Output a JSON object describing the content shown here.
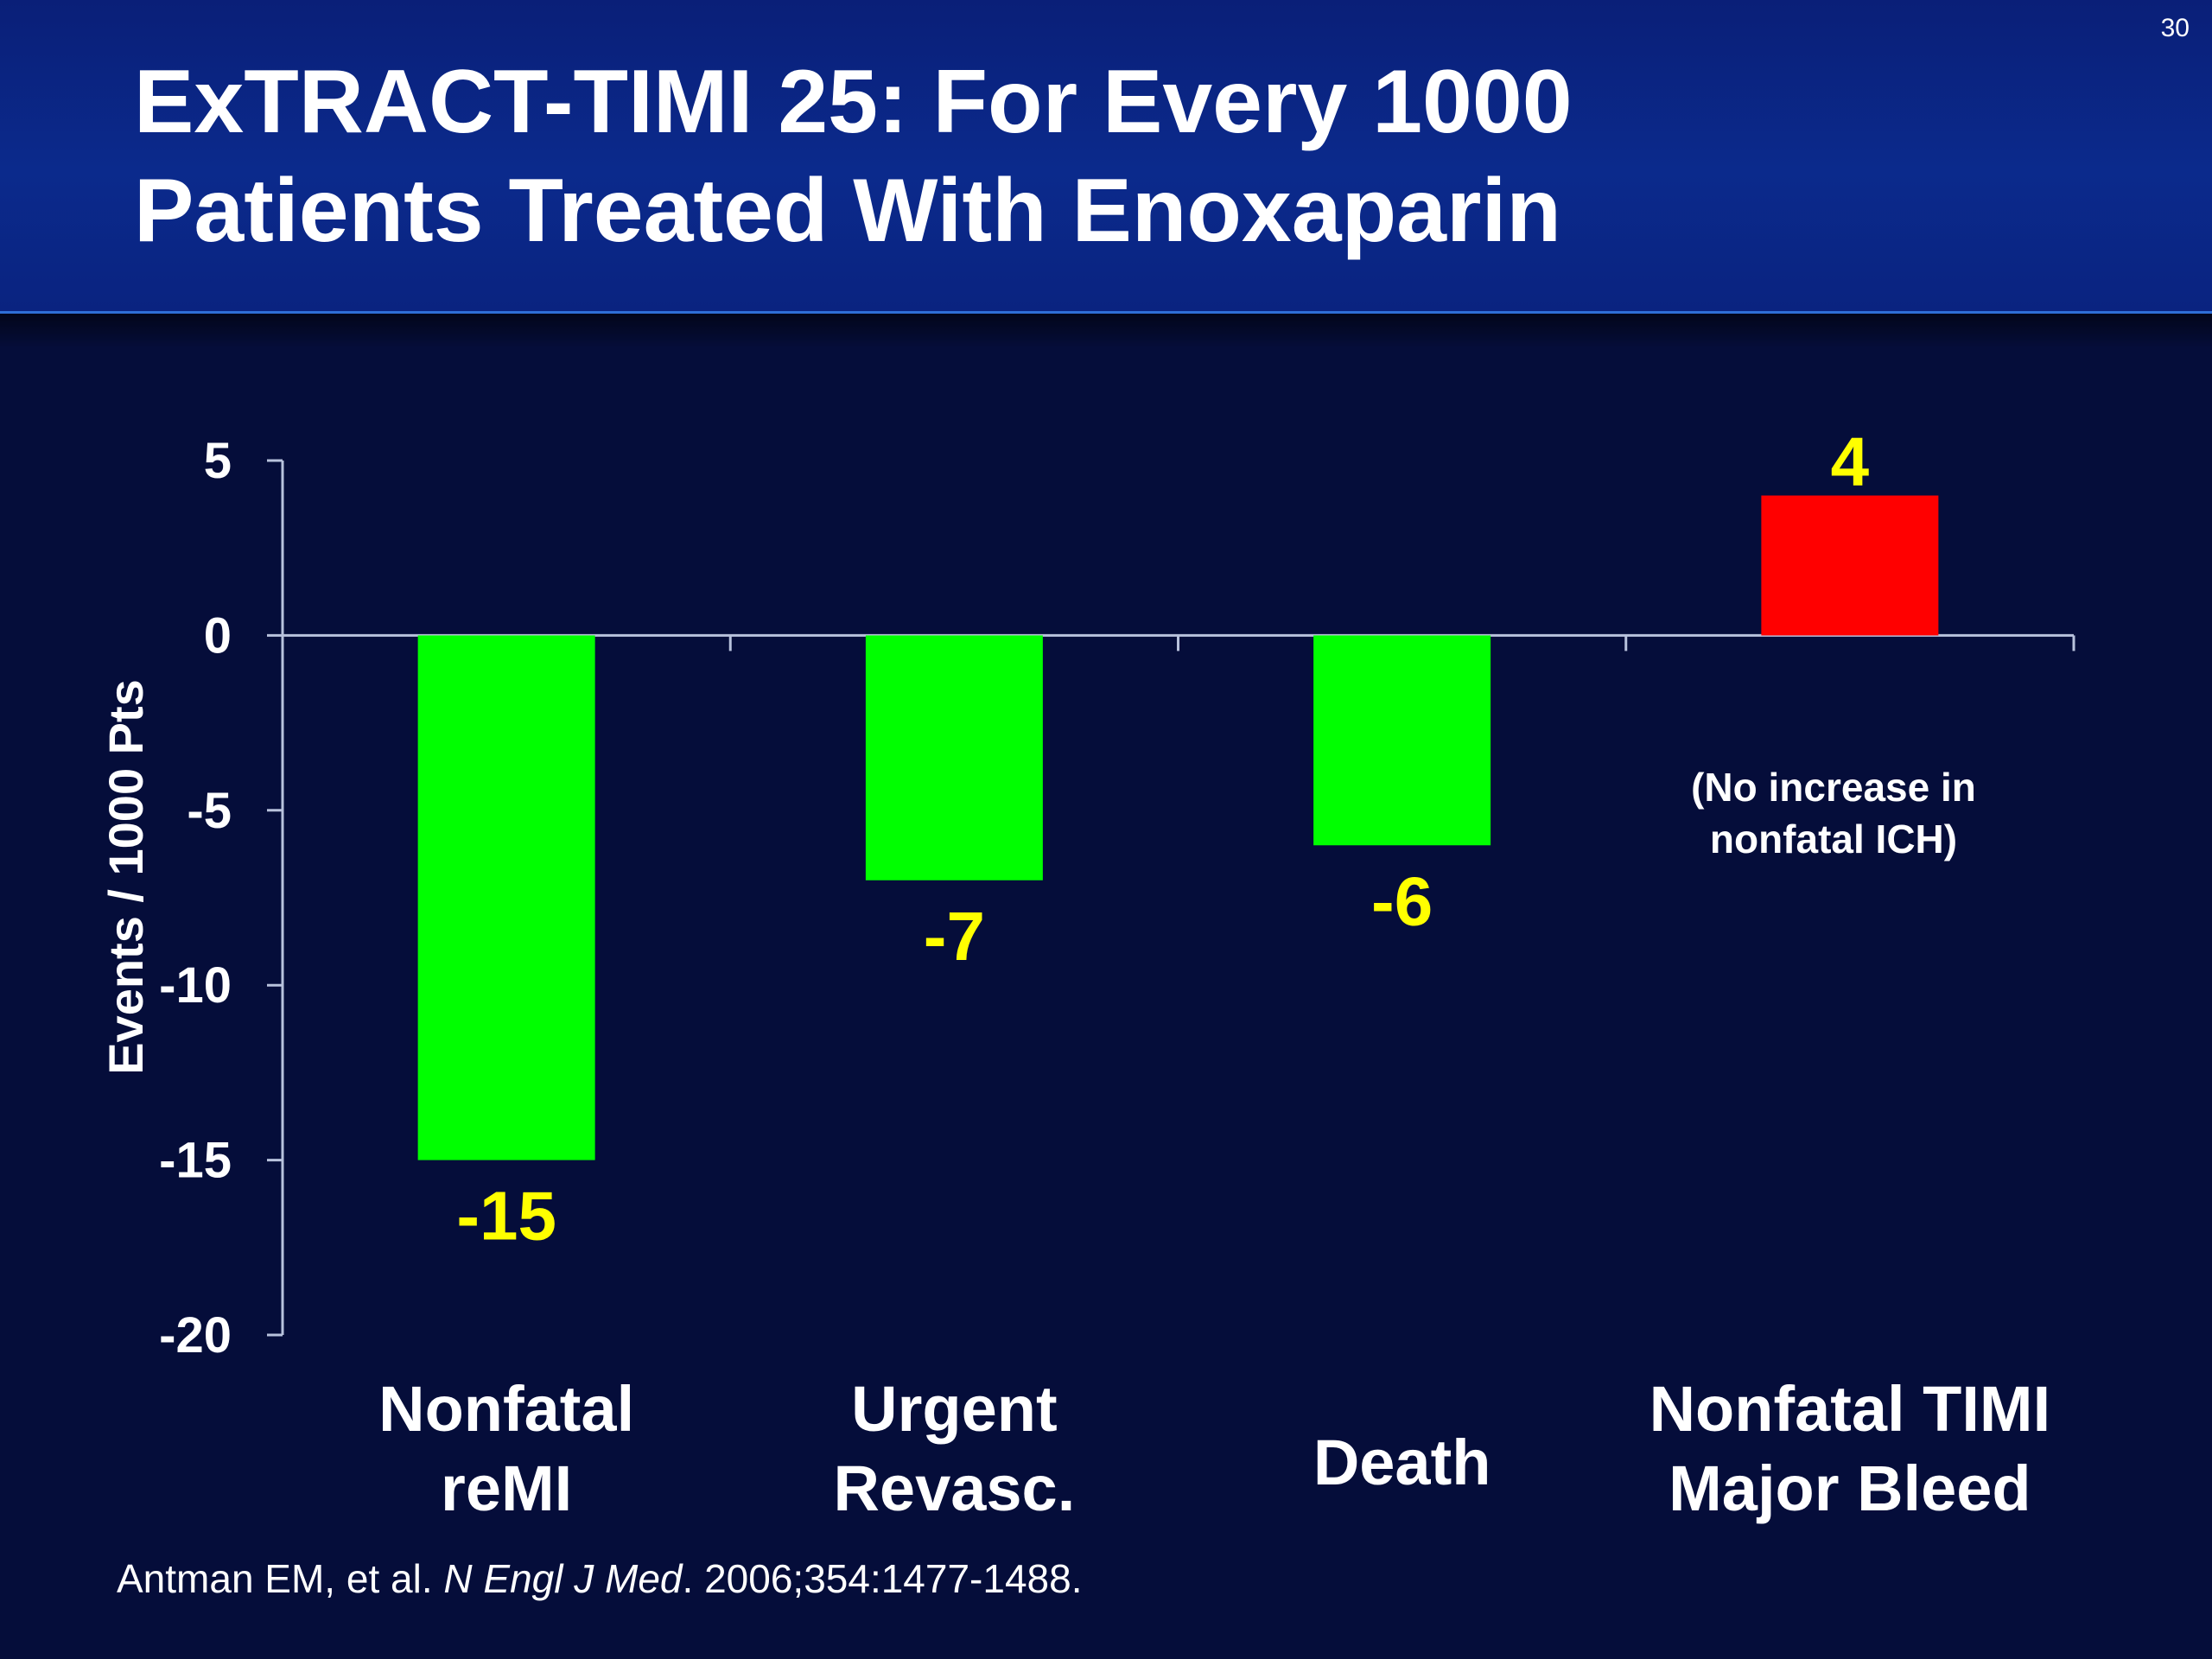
{
  "slide": {
    "number": "30",
    "title_line1": "ExTRACT-TIMI 25: For Every 1000",
    "title_line2": "Patients Treated With Enoxaparin"
  },
  "citation": {
    "authors": "Antman EM, et al.",
    "journal": "N Engl J Med",
    "details": ". 2006;354:1477-1488."
  },
  "annotation": {
    "line1": "(No increase in",
    "line2": "nonfatal ICH)"
  },
  "colors": {
    "background": "#050d3a",
    "header": "#0b2a8c",
    "benefit_bar": "#00ff00",
    "harm_bar": "#ff0000",
    "value_label": "#ffff00",
    "text": "#ffffff"
  },
  "chart_data": {
    "type": "bar",
    "title": "",
    "xlabel": "",
    "ylabel": "Events / 1000 Pts",
    "ylim": [
      -20,
      5
    ],
    "yticks": [
      5,
      0,
      -5,
      -10,
      -15,
      -20
    ],
    "categories": [
      [
        "Nonfatal",
        "reMI"
      ],
      [
        "Urgent",
        "Revasc."
      ],
      [
        "Death"
      ],
      [
        "Nonfatal TIMI",
        "Major Bleed"
      ]
    ],
    "values": [
      -15,
      -7,
      -6,
      4
    ],
    "value_labels": [
      "-15",
      "-7",
      "-6",
      "4"
    ],
    "bar_colors": [
      "#00ff00",
      "#00ff00",
      "#00ff00",
      "#ff0000"
    ],
    "grid": false,
    "legend": "none"
  }
}
